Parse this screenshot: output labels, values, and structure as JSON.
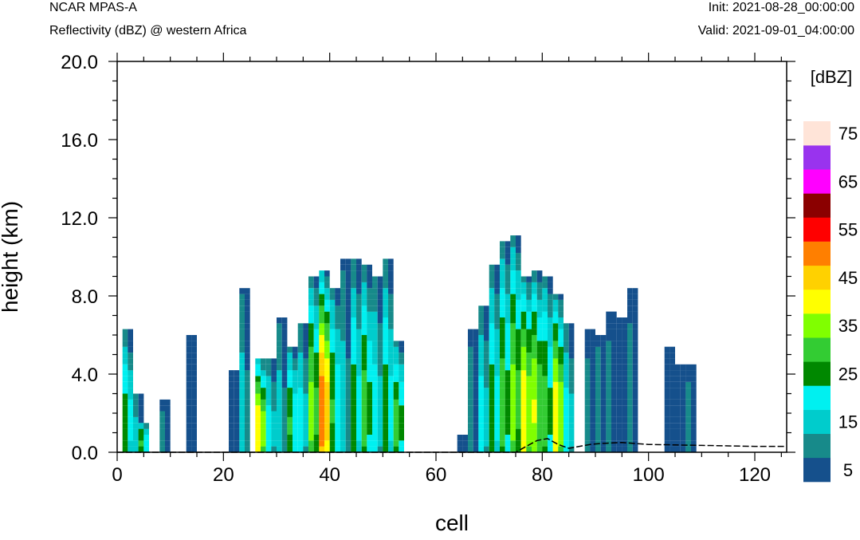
{
  "header": {
    "model": "NCAR MPAS-A",
    "field": "Reflectivity (dBZ) @ western Africa",
    "init": "Init: 2021-08-28_00:00:00",
    "valid": "Valid: 2021-09-01_04:00:00"
  },
  "chart_data": {
    "type": "heatmap",
    "xlabel": "cell",
    "ylabel": "height (km)",
    "xlim": [
      0,
      126
    ],
    "ylim": [
      0,
      20
    ],
    "xticks": [
      0,
      20,
      40,
      60,
      80,
      100,
      120
    ],
    "yticks": [
      "0.0",
      "4.0",
      "8.0",
      "12.0",
      "16.0",
      "20.0"
    ],
    "colorbar": {
      "unit": "[dBZ]",
      "levels": [
        0,
        5,
        10,
        15,
        20,
        25,
        30,
        35,
        40,
        45,
        50,
        55,
        60,
        65,
        70,
        75,
        80
      ],
      "tick_labels": [
        "5",
        "15",
        "25",
        "35",
        "45",
        "55",
        "65",
        "75"
      ],
      "colors": [
        "#15508c",
        "#178a8a",
        "#00cccc",
        "#00f0f0",
        "#008800",
        "#33cc33",
        "#80ff00",
        "#ffff00",
        "#ffd100",
        "#ff7f00",
        "#ff0000",
        "#8b0000",
        "#ff00ff",
        "#9933ee",
        "#ffe4d8"
      ]
    },
    "reflectivity_columns": [
      {
        "x": 2,
        "top": 6.2,
        "peak": 25
      },
      {
        "x": 4,
        "top": 3.0,
        "peak": 15
      },
      {
        "x": 5,
        "top": 1.6,
        "peak": 28
      },
      {
        "x": 9,
        "top": 2.7,
        "peak": 10
      },
      {
        "x": 14,
        "top": 6.0,
        "peak": 5
      },
      {
        "x": 22,
        "top": 4.2,
        "peak": 5
      },
      {
        "x": 24,
        "top": 8.5,
        "peak": 15
      },
      {
        "x": 27,
        "top": 4.8,
        "peak": 42
      },
      {
        "x": 29,
        "top": 4.7,
        "peak": 20
      },
      {
        "x": 31,
        "top": 6.8,
        "peak": 15
      },
      {
        "x": 33,
        "top": 5.5,
        "peak": 28
      },
      {
        "x": 35,
        "top": 6.5,
        "peak": 20
      },
      {
        "x": 37,
        "top": 9.0,
        "peak": 35
      },
      {
        "x": 39,
        "top": 9.2,
        "peak": 52
      },
      {
        "x": 41,
        "top": 8.5,
        "peak": 28
      },
      {
        "x": 43,
        "top": 9.8,
        "peak": 15
      },
      {
        "x": 45,
        "top": 9.8,
        "peak": 25
      },
      {
        "x": 47,
        "top": 9.5,
        "peak": 30
      },
      {
        "x": 49,
        "top": 9.0,
        "peak": 20
      },
      {
        "x": 51,
        "top": 9.8,
        "peak": 25
      },
      {
        "x": 53,
        "top": 5.8,
        "peak": 30
      },
      {
        "x": 65,
        "top": 0.8,
        "peak": 5
      },
      {
        "x": 67,
        "top": 6.2,
        "peak": 12
      },
      {
        "x": 69,
        "top": 7.5,
        "peak": 20
      },
      {
        "x": 71,
        "top": 9.5,
        "peak": 25
      },
      {
        "x": 73,
        "top": 10.8,
        "peak": 30
      },
      {
        "x": 75,
        "top": 11.2,
        "peak": 35
      },
      {
        "x": 77,
        "top": 9.0,
        "peak": 42
      },
      {
        "x": 79,
        "top": 9.2,
        "peak": 38
      },
      {
        "x": 81,
        "top": 9.0,
        "peak": 30
      },
      {
        "x": 83,
        "top": 8.0,
        "peak": 42
      },
      {
        "x": 85,
        "top": 6.5,
        "peak": 20
      },
      {
        "x": 89,
        "top": 6.2,
        "peak": 10
      },
      {
        "x": 91,
        "top": 6.0,
        "peak": 12
      },
      {
        "x": 93,
        "top": 7.2,
        "peak": 10
      },
      {
        "x": 95,
        "top": 7.0,
        "peak": 5
      },
      {
        "x": 97,
        "top": 8.3,
        "peak": 10
      },
      {
        "x": 104,
        "top": 5.4,
        "peak": 5
      },
      {
        "x": 106,
        "top": 4.4,
        "peak": 5
      },
      {
        "x": 108,
        "top": 4.4,
        "peak": 10
      }
    ],
    "terrain": {
      "x": [
        0,
        75,
        77,
        79,
        81,
        83,
        85,
        87,
        89,
        91,
        95,
        100,
        110,
        120,
        126
      ],
      "height_km": [
        0,
        0,
        0.3,
        0.6,
        0.7,
        0.4,
        0.2,
        0.3,
        0.4,
        0.45,
        0.5,
        0.4,
        0.35,
        0.3,
        0.3
      ]
    }
  }
}
